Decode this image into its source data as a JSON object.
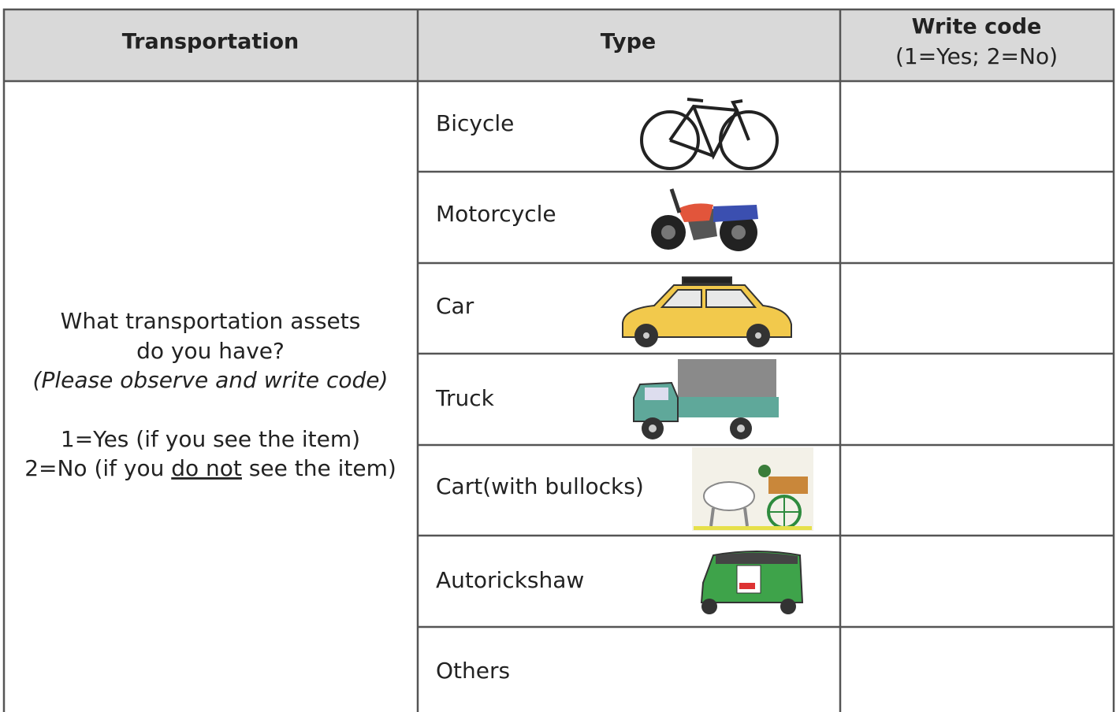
{
  "table": {
    "headers": {
      "transportation": "Transportation",
      "type": "Type",
      "code_title": "Write code",
      "code_note": "(1=Yes; 2=No)"
    },
    "question": {
      "lines": [
        "What transportation assets",
        "do you have?"
      ],
      "instruction": "(Please observe and write code)",
      "code_yes": "1=Yes (if you see the item)",
      "code_no": [
        "2=No (if you ",
        "do not",
        " see the item)"
      ]
    },
    "rows": [
      "Bicycle",
      "Motorcycle",
      "Car",
      "Truck",
      "Cart(with bullocks)",
      "Autorickshaw",
      "Others"
    ]
  }
}
